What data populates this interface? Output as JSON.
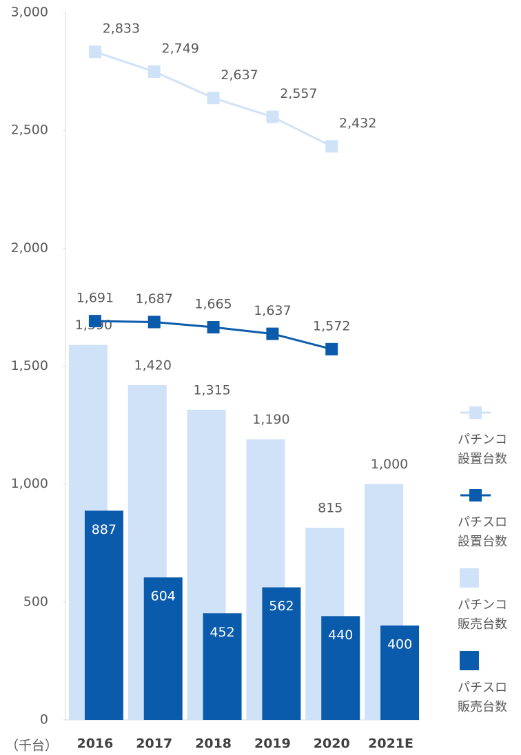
{
  "chart_data": {
    "type": "combo",
    "unit_label": "（千台）",
    "categories": [
      "2016",
      "2017",
      "2018",
      "2019",
      "2020",
      "2021E"
    ],
    "ylim": [
      0,
      3000
    ],
    "yticks": [
      0,
      500,
      {
        "value": 1000,
        "label": "1,000"
      },
      {
        "value": 1500,
        "label": "1,500"
      },
      {
        "value": 2000,
        "label": "2,000"
      },
      {
        "value": 2500,
        "label": "2,500"
      },
      {
        "value": 3000,
        "label": "3,000"
      }
    ],
    "series": [
      {
        "name": "パチンコ設置台数",
        "type": "line",
        "color": "#cfe2f8",
        "values": [
          2833,
          2749,
          2637,
          2557,
          2432,
          null
        ],
        "value_labels": [
          "2,833",
          "2,749",
          "2,637",
          "2,557",
          "2,432",
          null
        ]
      },
      {
        "name": "パチスロ設置台数",
        "type": "line",
        "color": "#0a5bab",
        "values": [
          1691,
          1687,
          1665,
          1637,
          1572,
          null
        ],
        "value_labels": [
          "1,691",
          "1,687",
          "1,665",
          "1,637",
          "1,572",
          null
        ]
      },
      {
        "name": "パチンコ販売台数",
        "type": "bar",
        "color": "#cfe2f8",
        "values": [
          1590,
          1420,
          1315,
          1190,
          815,
          1000
        ],
        "value_labels": [
          "1,590",
          "1,420",
          "1,315",
          "1,190",
          "815",
          "1,000"
        ]
      },
      {
        "name": "パチスロ販売台数",
        "type": "bar",
        "color": "#0a5bab",
        "values": [
          887,
          604,
          452,
          562,
          440,
          400
        ]
      }
    ]
  }
}
